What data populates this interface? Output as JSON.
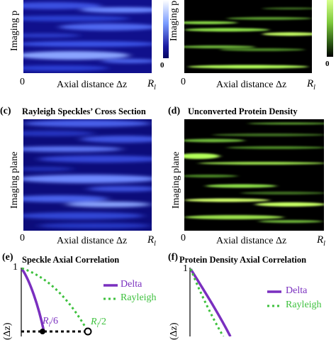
{
  "panels": {
    "a": {
      "y_label": "Imaging p",
      "x_label": "Axial distance Δz",
      "x_start": "0",
      "x_end": "R",
      "x_end_sub": "l",
      "colorbar_min": "0"
    },
    "b": {
      "x_label": "Axial distance Δz",
      "x_start": "0",
      "x_end": "R",
      "x_end_sub": "l",
      "colorbar_min": "0"
    },
    "c": {
      "label": "(c)",
      "title": "Rayleigh Speckles’ Cross Section",
      "y_label": "Imaging plane",
      "x_label": "Axial distance Δz",
      "x_start": "0",
      "x_end": "R",
      "x_end_sub": "l"
    },
    "d": {
      "label": "(d)",
      "title": "Unconverted Protein Density",
      "y_label": "Imaging plane",
      "x_label": "Axial distance Δz",
      "x_start": "0",
      "x_end": "R",
      "x_end_sub": "l"
    },
    "e": {
      "label": "(e)",
      "title": "Speckle Axial Correlation",
      "y_tick": "1",
      "y_label": "(Δz)",
      "annot_delta": "R",
      "annot_delta_sub": "l",
      "annot_delta_suffix": "/6",
      "annot_rayleigh": "R",
      "annot_rayleigh_sub": "l",
      "annot_rayleigh_suffix": "/2",
      "legend": [
        {
          "name": "Delta",
          "color": "#7a2fbf",
          "style": "solid"
        },
        {
          "name": "Rayleigh",
          "color": "#3ec13e",
          "style": "dotted"
        }
      ]
    },
    "f": {
      "label": "(f)",
      "title": "Protein Density Axial Correlation",
      "y_tick": "1",
      "y_label": "(Δz)",
      "legend": [
        {
          "name": "Delta",
          "color": "#7a2fbf",
          "style": "solid"
        },
        {
          "name": "Rayleigh",
          "color": "#3ec13e",
          "style": "dotted"
        }
      ]
    }
  },
  "colors": {
    "speckle_dark": "#0a0a6e",
    "speckle_bright": "#9fb6ff",
    "protein_dark": "#000000",
    "protein_bright": "#b8ff4a",
    "delta": "#7a2fbf",
    "rayleigh": "#3ec13e"
  }
}
